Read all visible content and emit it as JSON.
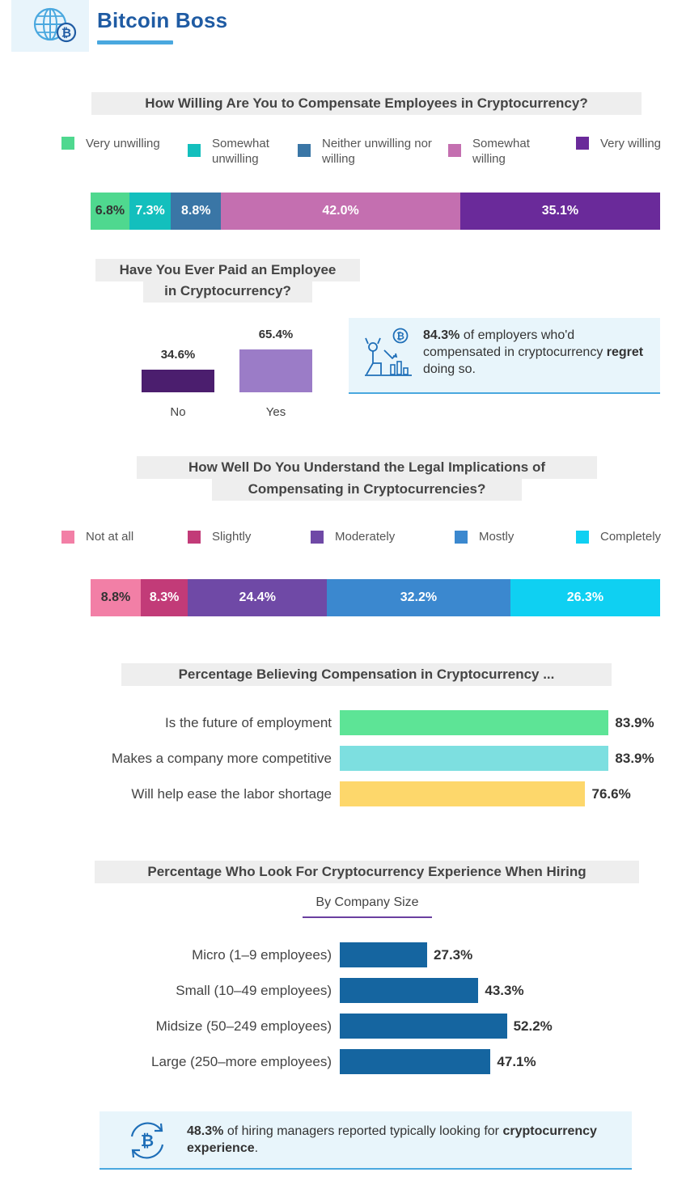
{
  "brand": {
    "name": "Bitcoin Boss"
  },
  "colors": {
    "title_bg": "#eeeeee",
    "callout_bg": "#e8f5fb",
    "accent_blue": "#4aa8df",
    "brand_blue": "#1f5ba3"
  },
  "chart_data": [
    {
      "type": "bar",
      "stacked": true,
      "orientation": "horizontal",
      "title": "How Willing Are You to Compensate Employees in Cryptocurrency?",
      "legend_position": "top",
      "series": [
        {
          "name": "Very unwilling",
          "value": 6.8,
          "label": "6.8%",
          "color": "#4fd88f"
        },
        {
          "name": "Somewhat unwilling",
          "value": 7.3,
          "label": "7.3%",
          "color": "#13bfbd"
        },
        {
          "name": "Neither unwilling nor willing",
          "value": 8.8,
          "label": "8.8%",
          "color": "#3a76a6"
        },
        {
          "name": "Somewhat willing",
          "value": 42.0,
          "label": "42.0%",
          "color": "#c46fb0"
        },
        {
          "name": "Very willing",
          "value": 35.1,
          "label": "35.1%",
          "color": "#6a2a9a"
        }
      ]
    },
    {
      "type": "bar",
      "orientation": "vertical",
      "title_line1": "Have You Ever Paid an Employee",
      "title_line2": "in Cryptocurrency?",
      "categories": [
        "No",
        "Yes"
      ],
      "values": [
        34.6,
        65.4
      ],
      "labels": [
        "34.6%",
        "65.4%"
      ],
      "colors": [
        "#4b1e6e",
        "#9b7cc7"
      ]
    },
    {
      "type": "bar",
      "stacked": true,
      "orientation": "horizontal",
      "title_line1": "How Well Do You Understand the Legal Implications of",
      "title_line2": "Compensating in Cryptocurrencies?",
      "legend_position": "top",
      "series": [
        {
          "name": "Not at all",
          "value": 8.8,
          "label": "8.8%",
          "color": "#f27fa6"
        },
        {
          "name": "Slightly",
          "value": 8.3,
          "label": "8.3%",
          "color": "#c23b78"
        },
        {
          "name": "Moderately",
          "value": 24.4,
          "label": "24.4%",
          "color": "#6f49a6"
        },
        {
          "name": "Mostly",
          "value": 32.2,
          "label": "32.2%",
          "color": "#3b88cf"
        },
        {
          "name": "Completely",
          "value": 26.3,
          "label": "26.3%",
          "color": "#0fd0f2"
        }
      ]
    },
    {
      "type": "bar",
      "orientation": "horizontal",
      "title": "Percentage Believing Compensation in Cryptocurrency ...",
      "categories": [
        "Is the future of employment",
        "Makes a company more competitive",
        "Will help ease the labor shortage"
      ],
      "values": [
        83.9,
        83.9,
        76.6
      ],
      "labels": [
        "83.9%",
        "83.9%",
        "76.6%"
      ],
      "colors": [
        "#5de496",
        "#7ddfe0",
        "#fdd76b"
      ]
    },
    {
      "type": "bar",
      "orientation": "horizontal",
      "title": "Percentage Who Look For Cryptocurrency Experience When Hiring",
      "subtitle": "By Company Size",
      "categories": [
        "Micro (1–9 employees)",
        "Small (10–49 employees)",
        "Midsize (50–249 employees)",
        "Large (250–more employees)"
      ],
      "values": [
        27.3,
        43.3,
        52.2,
        47.1
      ],
      "labels": [
        "27.3%",
        "43.3%",
        "52.2%",
        "47.1%"
      ],
      "color": "#1565a0"
    }
  ],
  "callout1": {
    "stat": "84.3%",
    "text_a": " of employers who'd compensated in cryptocurrency ",
    "bold_word": "regret",
    "text_b": " doing so."
  },
  "callout2": {
    "stat": "48.3%",
    "text_a": " of hiring managers reported typically looking for ",
    "bold_phrase": "cryptocurrency experience",
    "text_b": "."
  }
}
